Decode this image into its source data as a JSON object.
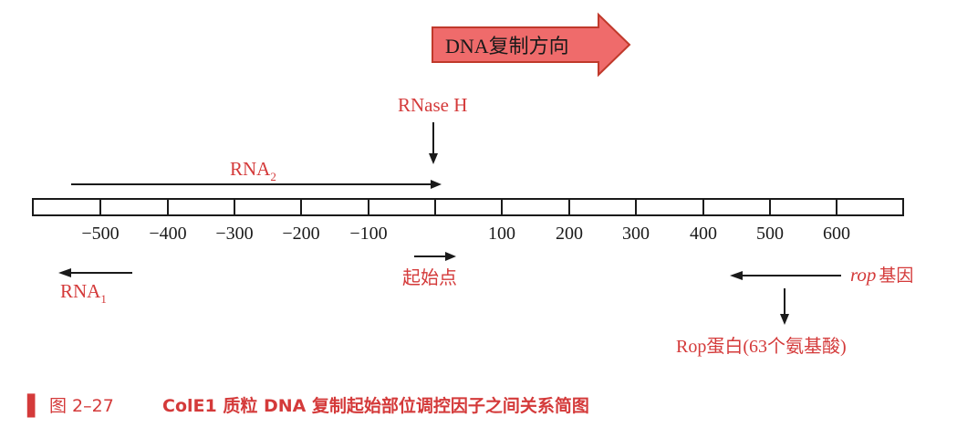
{
  "direction_banner": {
    "label": "DNA复制方向"
  },
  "enzyme_label": "RNase H",
  "rna2": {
    "base": "RNA",
    "sub": "2"
  },
  "rna1": {
    "base": "RNA",
    "sub": "1"
  },
  "axis_ticks": [
    "−500",
    "−400",
    "−300",
    "−200",
    "−100",
    "100",
    "200",
    "300",
    "400",
    "500",
    "600"
  ],
  "origin_label": "起始点",
  "rop_gene": {
    "italic": "rop",
    "rest": "基因"
  },
  "rop_protein_label": "Rop蛋白(63个氨基酸)",
  "caption": {
    "marker": "▌",
    "prefix": "图 2–27",
    "text": "ColE1 质粒 DNA 复制起始部位调控因子之间关系简图"
  },
  "colors": {
    "accent_red": "#d43a3a",
    "banner_fill": "#ef6b6b",
    "line": "#1a1a1a"
  }
}
